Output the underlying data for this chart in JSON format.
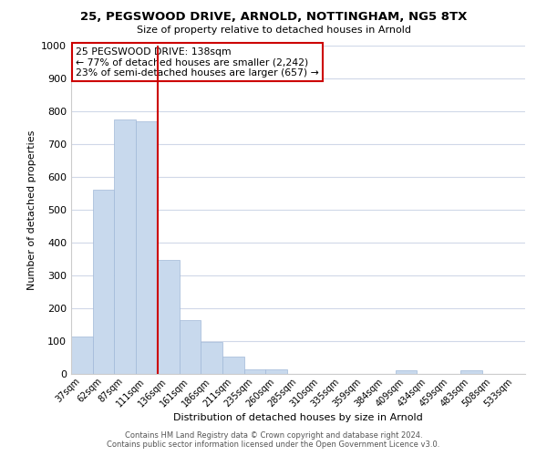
{
  "title1": "25, PEGSWOOD DRIVE, ARNOLD, NOTTINGHAM, NG5 8TX",
  "title2": "Size of property relative to detached houses in Arnold",
  "xlabel": "Distribution of detached houses by size in Arnold",
  "ylabel": "Number of detached properties",
  "bar_labels": [
    "37sqm",
    "62sqm",
    "87sqm",
    "111sqm",
    "136sqm",
    "161sqm",
    "186sqm",
    "211sqm",
    "235sqm",
    "260sqm",
    "285sqm",
    "310sqm",
    "335sqm",
    "359sqm",
    "384sqm",
    "409sqm",
    "434sqm",
    "459sqm",
    "483sqm",
    "508sqm",
    "533sqm"
  ],
  "bar_values": [
    115,
    560,
    775,
    770,
    348,
    163,
    97,
    54,
    13,
    13,
    0,
    0,
    0,
    0,
    0,
    12,
    0,
    0,
    12,
    0,
    0
  ],
  "bar_color": "#c8d9ed",
  "bar_edge_color": "#a0b8d8",
  "vline_color": "#cc0000",
  "annotation_title": "25 PEGSWOOD DRIVE: 138sqm",
  "annotation_line1": "← 77% of detached houses are smaller (2,242)",
  "annotation_line2": "23% of semi-detached houses are larger (657) →",
  "annotation_box_color": "#ffffff",
  "annotation_box_edge": "#cc0000",
  "ylim": [
    0,
    1000
  ],
  "yticks": [
    0,
    100,
    200,
    300,
    400,
    500,
    600,
    700,
    800,
    900,
    1000
  ],
  "footnote1": "Contains HM Land Registry data © Crown copyright and database right 2024.",
  "footnote2": "Contains public sector information licensed under the Open Government Licence v3.0.",
  "bg_color": "#ffffff",
  "grid_color": "#d0d8e8"
}
